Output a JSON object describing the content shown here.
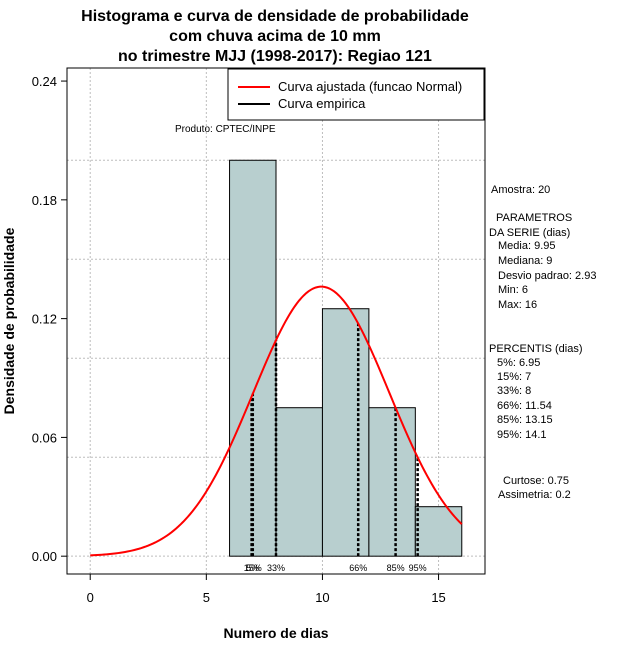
{
  "chart_data": {
    "type": "bar",
    "title_lines": [
      "Histograma e curva de densidade de probabilidade",
      "com chuva acima de 10 mm",
      "no trimestre MJJ (1998-2017): Regiao 121"
    ],
    "xlabel": "Numero de dias",
    "ylabel": "Densidade de probabilidade",
    "xlim": [
      -1,
      17
    ],
    "ylim": [
      -0.009,
      0.2466
    ],
    "x_ticks": [
      0,
      5,
      10,
      15
    ],
    "x_tick_labels": [
      "0",
      "5",
      "10",
      "15"
    ],
    "y_ticks": [
      0,
      0.06,
      0.12,
      0.18,
      0.24
    ],
    "y_tick_labels": [
      "0.00",
      "0.06",
      "0.12",
      "0.18",
      "0.24"
    ],
    "grid": true,
    "bins": [
      {
        "x0": 6,
        "x1": 8,
        "density": 0.2
      },
      {
        "x0": 8,
        "x1": 10,
        "density": 0.075
      },
      {
        "x0": 10,
        "x1": 12,
        "density": 0.125
      },
      {
        "x0": 12,
        "x1": 14,
        "density": 0.075
      },
      {
        "x0": 14,
        "x1": 16,
        "density": 0.025
      }
    ],
    "normal_fit": {
      "mean": 9.95,
      "sd": 2.93,
      "x_from": 0,
      "x_to": 16
    },
    "percentile_lines": [
      {
        "label": "5%",
        "x": 6.95
      },
      {
        "label": "15%",
        "x": 7
      },
      {
        "label": "33%",
        "x": 8
      },
      {
        "label": "66%",
        "x": 11.54
      },
      {
        "label": "85%",
        "x": 13.15
      },
      {
        "label": "95%",
        "x": 14.1
      }
    ],
    "percentile_label_text": [
      {
        "text": "15%",
        "x": 7
      },
      {
        "text": "5%",
        "x": 7
      },
      {
        "text": "33%",
        "x": 8
      },
      {
        "text": "66%",
        "x": 11.54
      },
      {
        "text": "85%",
        "x": 13.15
      },
      {
        "text": "95%",
        "x": 14.1
      }
    ],
    "legend": [
      {
        "label": "Curva ajustada (funcao Normal)",
        "color": "#ff0000"
      },
      {
        "label": "Curva empirica",
        "color": "#000000"
      }
    ],
    "legend_position": "top-right",
    "annotation": "Produto: CPTEC/INPE",
    "bar_color": "#b8cfcf",
    "curve_color": "#ff0000"
  },
  "stats_panel": {
    "amostra": "Amostra: 20",
    "params_header_1": "PARAMETROS",
    "params_header_2": "DA SERIE (dias)",
    "media": "Media: 9.95",
    "mediana": "Mediana: 9",
    "desvio": "Desvio padrao: 2.93",
    "min": "Min: 6",
    "max": "Max: 16",
    "percentis_header": "PERCENTIS (dias)",
    "p5": "5%: 6.95",
    "p15": "15%: 7",
    "p33": "33%: 8",
    "p66": "66%: 11.54",
    "p85": "85%: 13.15",
    "p95": "95%: 14.1",
    "curtose": "Curtose: 0.75",
    "assimetria": "Assimetria: 0.2"
  }
}
